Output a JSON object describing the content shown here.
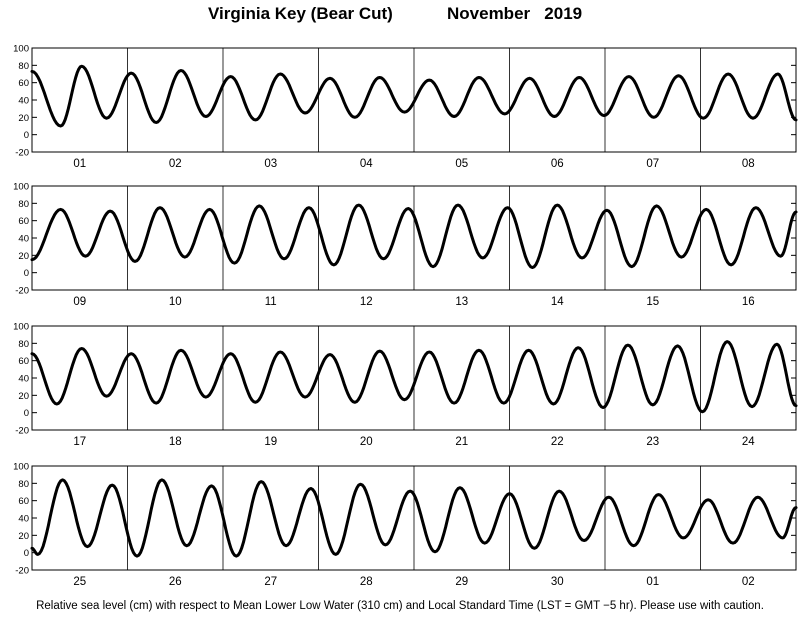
{
  "header": {
    "station": "Virginia Key (Bear Cut)",
    "period": "November   2019"
  },
  "footer": {
    "note": "Relative sea level (cm) with respect to Mean Lower Low Water (310 cm) and Local Standard Time (LST = GMT −5 hr). Please use with caution."
  },
  "chart_data": [
    {
      "type": "line",
      "ylim": [
        -20,
        100
      ],
      "yticks": [
        -20,
        0,
        20,
        40,
        60,
        80,
        100
      ],
      "grid": "vertical day dividers",
      "day_labels": [
        "01",
        "02",
        "03",
        "04",
        "05",
        "06",
        "07",
        "08"
      ],
      "extrema": [
        [
          0.0,
          73
        ],
        [
          0.3,
          10
        ],
        [
          0.52,
          79
        ],
        [
          0.78,
          19
        ],
        [
          1.04,
          71
        ],
        [
          1.3,
          14
        ],
        [
          1.56,
          74
        ],
        [
          1.82,
          21
        ],
        [
          2.08,
          67
        ],
        [
          2.34,
          17
        ],
        [
          2.6,
          70
        ],
        [
          2.86,
          25
        ],
        [
          3.12,
          65
        ],
        [
          3.38,
          20
        ],
        [
          3.64,
          66
        ],
        [
          3.9,
          26
        ],
        [
          4.16,
          63
        ],
        [
          4.42,
          21
        ],
        [
          4.68,
          66
        ],
        [
          4.95,
          24
        ],
        [
          5.21,
          65
        ],
        [
          5.47,
          21
        ],
        [
          5.73,
          66
        ],
        [
          5.99,
          22
        ],
        [
          6.25,
          67
        ],
        [
          6.51,
          20
        ],
        [
          6.77,
          68
        ],
        [
          7.03,
          19
        ],
        [
          7.29,
          70
        ],
        [
          7.55,
          19
        ],
        [
          7.81,
          70
        ],
        [
          8.0,
          17
        ]
      ]
    },
    {
      "type": "line",
      "ylim": [
        -20,
        100
      ],
      "yticks": [
        -20,
        0,
        20,
        40,
        60,
        80,
        100
      ],
      "grid": "vertical day dividers",
      "day_labels": [
        "09",
        "10",
        "11",
        "12",
        "13",
        "14",
        "15",
        "16"
      ],
      "extrema": [
        [
          0.0,
          15
        ],
        [
          0.3,
          73
        ],
        [
          0.56,
          19
        ],
        [
          0.82,
          71
        ],
        [
          1.08,
          13
        ],
        [
          1.34,
          75
        ],
        [
          1.6,
          18
        ],
        [
          1.86,
          73
        ],
        [
          2.12,
          11
        ],
        [
          2.38,
          77
        ],
        [
          2.64,
          16
        ],
        [
          2.9,
          75
        ],
        [
          3.16,
          9
        ],
        [
          3.42,
          78
        ],
        [
          3.68,
          16
        ],
        [
          3.94,
          74
        ],
        [
          4.2,
          7
        ],
        [
          4.46,
          78
        ],
        [
          4.72,
          17
        ],
        [
          4.98,
          75
        ],
        [
          5.24,
          6
        ],
        [
          5.5,
          78
        ],
        [
          5.76,
          17
        ],
        [
          6.02,
          72
        ],
        [
          6.28,
          7
        ],
        [
          6.54,
          77
        ],
        [
          6.8,
          18
        ],
        [
          7.06,
          73
        ],
        [
          7.32,
          9
        ],
        [
          7.58,
          75
        ],
        [
          7.84,
          19
        ],
        [
          8.0,
          70
        ]
      ]
    },
    {
      "type": "line",
      "ylim": [
        -20,
        100
      ],
      "yticks": [
        -20,
        0,
        20,
        40,
        60,
        80,
        100
      ],
      "grid": "vertical day dividers",
      "day_labels": [
        "17",
        "18",
        "19",
        "20",
        "21",
        "22",
        "23",
        "24"
      ],
      "extrema": [
        [
          0.0,
          68
        ],
        [
          0.26,
          10
        ],
        [
          0.52,
          74
        ],
        [
          0.78,
          19
        ],
        [
          1.04,
          68
        ],
        [
          1.3,
          11
        ],
        [
          1.56,
          72
        ],
        [
          1.82,
          18
        ],
        [
          2.08,
          68
        ],
        [
          2.34,
          12
        ],
        [
          2.6,
          70
        ],
        [
          2.86,
          18
        ],
        [
          3.12,
          67
        ],
        [
          3.38,
          12
        ],
        [
          3.64,
          71
        ],
        [
          3.9,
          15
        ],
        [
          4.16,
          70
        ],
        [
          4.42,
          11
        ],
        [
          4.68,
          72
        ],
        [
          4.94,
          11
        ],
        [
          5.2,
          72
        ],
        [
          5.46,
          10
        ],
        [
          5.72,
          75
        ],
        [
          5.98,
          6
        ],
        [
          6.24,
          78
        ],
        [
          6.5,
          9
        ],
        [
          6.76,
          77
        ],
        [
          7.02,
          1
        ],
        [
          7.28,
          82
        ],
        [
          7.54,
          7
        ],
        [
          7.8,
          79
        ],
        [
          8.0,
          8
        ]
      ]
    },
    {
      "type": "line",
      "ylim": [
        -20,
        100
      ],
      "yticks": [
        -20,
        0,
        20,
        40,
        60,
        80,
        100
      ],
      "grid": "vertical day dividers",
      "day_labels": [
        "25",
        "26",
        "27",
        "28",
        "29",
        "30",
        "01",
        "02"
      ],
      "extrema": [
        [
          0.0,
          5
        ],
        [
          0.06,
          -2
        ],
        [
          0.32,
          84
        ],
        [
          0.58,
          7
        ],
        [
          0.84,
          78
        ],
        [
          1.1,
          -4
        ],
        [
          1.36,
          84
        ],
        [
          1.62,
          8
        ],
        [
          1.88,
          77
        ],
        [
          2.14,
          -4
        ],
        [
          2.4,
          82
        ],
        [
          2.66,
          8
        ],
        [
          2.92,
          74
        ],
        [
          3.18,
          -2
        ],
        [
          3.44,
          79
        ],
        [
          3.7,
          9
        ],
        [
          3.96,
          71
        ],
        [
          4.22,
          1
        ],
        [
          4.48,
          75
        ],
        [
          4.74,
          11
        ],
        [
          5.0,
          68
        ],
        [
          5.26,
          5
        ],
        [
          5.52,
          71
        ],
        [
          5.78,
          14
        ],
        [
          6.04,
          64
        ],
        [
          6.3,
          8
        ],
        [
          6.56,
          67
        ],
        [
          6.82,
          17
        ],
        [
          7.08,
          61
        ],
        [
          7.34,
          11
        ],
        [
          7.6,
          64
        ],
        [
          7.86,
          17
        ],
        [
          8.0,
          52
        ]
      ]
    }
  ]
}
